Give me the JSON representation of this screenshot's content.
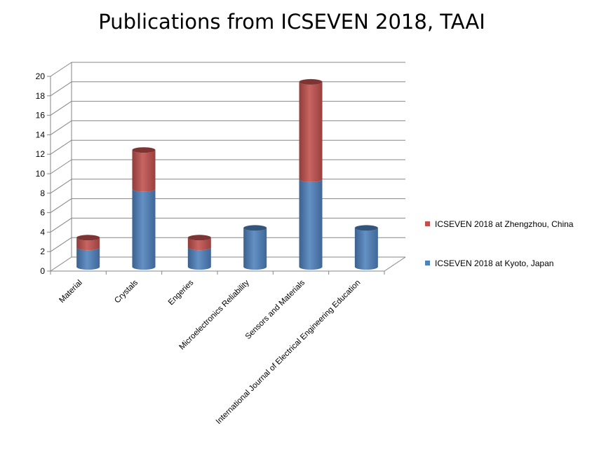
{
  "chart_data": {
    "type": "bar",
    "stacked": true,
    "three_d": true,
    "title": "Publications from ICSEVEN 2018, TAAI",
    "categories": [
      "Material",
      "Crystals",
      "Engeries",
      "Microelectronics Reliability",
      "Sensors and Materials",
      "International Journal of Electrical Engineering Education"
    ],
    "series": [
      {
        "name": "ICSEVEN 2018 at Kyoto, Japan",
        "color": "#4f81bd",
        "values": [
          2,
          8,
          2,
          4,
          9,
          4
        ]
      },
      {
        "name": "ICSEVEN 2018 at Zhengzhou, China",
        "color": "#c0504d",
        "values": [
          1,
          4,
          1,
          0,
          10,
          0
        ]
      }
    ],
    "ylim": [
      0,
      20
    ],
    "yticks": [
      0,
      2,
      4,
      6,
      8,
      10,
      12,
      14,
      16,
      18,
      20
    ],
    "grid": true,
    "legend_position": "right"
  }
}
